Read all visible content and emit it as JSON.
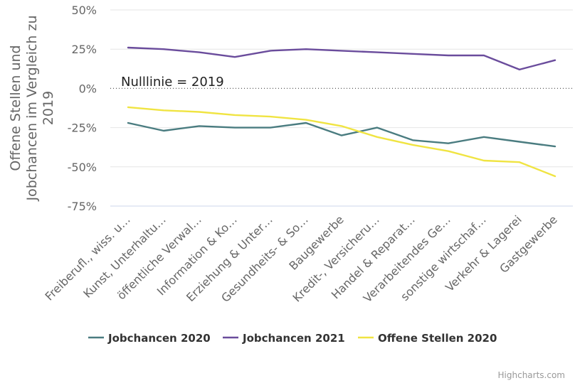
{
  "chart_data": {
    "type": "line",
    "ylabel": "Offene Stellen und Jobchancen im Vergleich zu 2019",
    "ylabel_lines": [
      "Offene Stellen und",
      "Jobchancen im Vergleich zu",
      "2019"
    ],
    "ylim": [
      -75,
      50
    ],
    "yticks": [
      {
        "value": 50,
        "label": "50%"
      },
      {
        "value": 25,
        "label": "25%"
      },
      {
        "value": 0,
        "label": "0%"
      },
      {
        "value": -25,
        "label": "-25%"
      },
      {
        "value": -50,
        "label": "-50%"
      },
      {
        "value": -75,
        "label": "-75%"
      }
    ],
    "grid": true,
    "legend_position": "bottom",
    "annotation": "Nulllinie = 2019",
    "categories": [
      "Freiberufl., wiss. u…",
      "Kunst, Unterhaltu…",
      "öffentliche Verwal…",
      "Information & Ko…",
      "Erziehung & Unter…",
      "Gesundheits- & So…",
      "Baugewerbe",
      "Kredit-, Versicheru…",
      "Handel & Reparat…",
      "Verarbeitendes Ge…",
      "sonstige wirtschaf…",
      "Verkehr & Lagerei",
      "Gastgewerbe"
    ],
    "series": [
      {
        "name": "Jobchancen 2020",
        "color": "#4a7c80",
        "values": [
          -22,
          -27,
          -24,
          -25,
          -25,
          -22,
          -30,
          -25,
          -33,
          -35,
          -31,
          -34,
          -37
        ]
      },
      {
        "name": "Jobchancen 2021",
        "color": "#6a4c9c",
        "values": [
          26,
          25,
          23,
          20,
          24,
          25,
          24,
          23,
          22,
          21,
          21,
          12,
          18
        ]
      },
      {
        "name": "Offene Stellen 2020",
        "color": "#f0e442",
        "values": [
          -12,
          -14,
          -15,
          -17,
          -18,
          -20,
          -24,
          -31,
          -36,
          -40,
          -46,
          -47,
          -56
        ]
      }
    ]
  },
  "credits": "Highcharts.com"
}
